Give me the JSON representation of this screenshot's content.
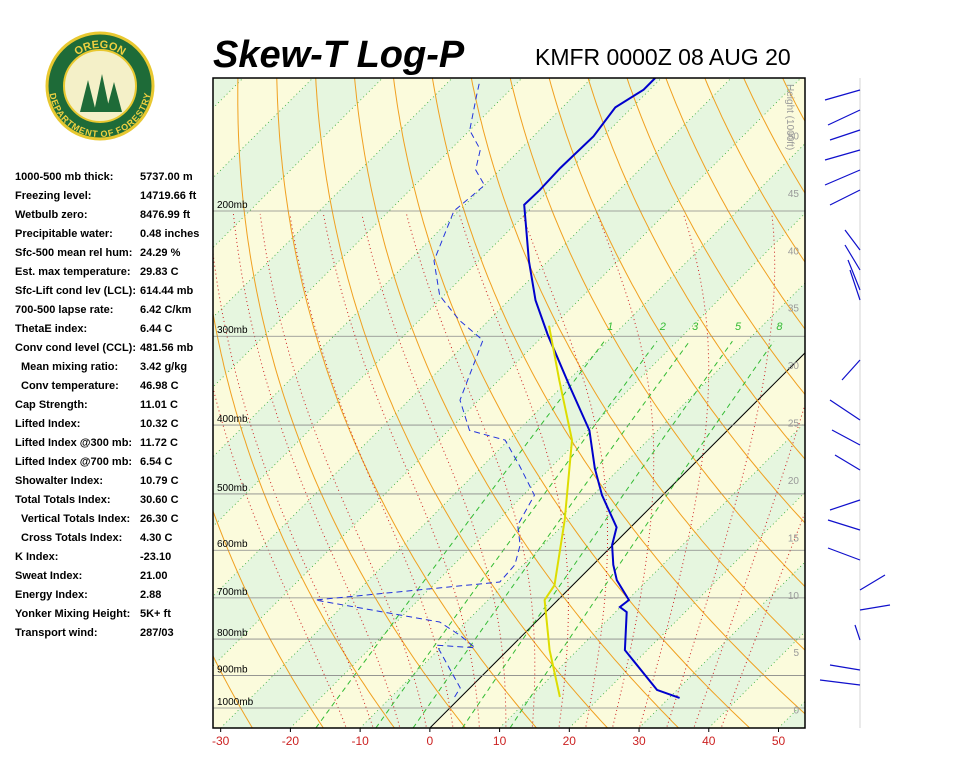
{
  "logo": {
    "top": "OREGON",
    "bottom": "DEPARTMENT OF FORESTRY"
  },
  "stats": {
    "rows": [
      {
        "label": "1000-500 mb thick:",
        "value": "5737.00 m"
      },
      {
        "label": "Freezing level:",
        "value": "14719.66 ft"
      },
      {
        "label": "Wetbulb zero:",
        "value": "8476.99 ft"
      },
      {
        "label": "Precipitable water:",
        "value": "0.48 inches"
      },
      {
        "label": "Sfc-500 mean rel hum:",
        "value": "24.29 %"
      },
      {
        "label": "Est. max temperature:",
        "value": "29.83 C"
      },
      {
        "label": "Sfc-Lift cond lev (LCL):",
        "value": "614.44 mb"
      },
      {
        "label": "700-500 lapse rate:",
        "value": "6.42 C/km"
      },
      {
        "label": "ThetaE index:",
        "value": "6.44 C"
      },
      {
        "label": "Conv cond level (CCL):",
        "value": "481.56 mb",
        "sub_rows": [
          {
            "label": "Mean mixing ratio:",
            "value": "3.42 g/kg"
          },
          {
            "label": "Conv temperature:",
            "value": "46.98 C"
          }
        ]
      },
      {
        "label": "Cap Strength:",
        "value": "11.01 C"
      },
      {
        "label": "Lifted Index:",
        "value": "10.32 C"
      },
      {
        "label": "Lifted Index @300 mb:",
        "value": "11.72 C"
      },
      {
        "label": "Lifted Index @700 mb:",
        "value": "6.54 C"
      },
      {
        "label": "Showalter Index:",
        "value": "10.79 C"
      },
      {
        "label": "Total Totals Index:",
        "value": "30.60 C",
        "sub_rows": [
          {
            "label": "Vertical Totals Index:",
            "value": "26.30 C"
          },
          {
            "label": "Cross Totals Index:",
            "value": "4.30 C"
          }
        ]
      },
      {
        "label": "K Index:",
        "value": "-23.10"
      },
      {
        "label": "Sweat Index:",
        "value": "21.00"
      },
      {
        "label": "Energy Index:",
        "value": "2.88"
      },
      {
        "label": "Yonker Mixing Height:",
        "value": "5K+ ft"
      },
      {
        "label": "Transport wind:",
        "value": "287/03"
      }
    ]
  },
  "chart_data": {
    "type": "skew-t",
    "title": "Skew-T Log-P",
    "subtitle": "KMFR 0000Z 08 AUG 20",
    "xlim": [
      -31.1,
      53.8
    ],
    "xticks": [
      -30,
      -20,
      -10,
      0,
      10,
      20,
      30,
      40,
      50
    ],
    "ylim": [
      1067,
      130
    ],
    "log_y": true,
    "skew_degrees": 45,
    "yticks": [
      {
        "value": 1000,
        "label": "1000mb"
      },
      {
        "value": 900,
        "label": "900mb"
      },
      {
        "value": 800,
        "label": "800mb"
      },
      {
        "value": 700,
        "label": "700mb"
      },
      {
        "value": 600,
        "label": "600mb"
      },
      {
        "value": 500,
        "label": "500mb"
      },
      {
        "value": 400,
        "label": "400mb"
      },
      {
        "value": 300,
        "label": "300mb"
      },
      {
        "value": 200,
        "label": "200mb"
      }
    ],
    "height_label": "Height (1000ft)",
    "hlim": [
      -1.6,
      55
    ],
    "height_ticks": [
      0,
      5,
      10,
      15,
      20,
      25,
      30,
      35,
      40,
      45,
      50
    ],
    "mixing_ratio_lines": [
      1,
      2,
      3,
      5,
      8
    ],
    "mixing_ratio_color": "#33bb33",
    "series": [
      {
        "color": "#0000cc",
        "pressure": [
          968,
          943,
          829,
          733,
          721,
          705,
          661,
          629,
          590,
          557,
          502,
          460,
          407,
          352,
          299,
          267,
          235,
          196,
          187,
          174,
          157,
          143,
          135,
          130
        ],
        "values": [
          31.5,
          27.1,
          16.8,
          11.6,
          9.9,
          10.2,
          5.6,
          2.9,
          -0.1,
          -2.0,
          -8.7,
          -13.6,
          -19.8,
          -29.1,
          -39.4,
          -46.2,
          -52.8,
          -61.5,
          -61.4,
          -61.6,
          -61.4,
          -62.4,
          -60.9,
          -60.9
        ]
      },
      {
        "color": "#2233dd",
        "dashed": true,
        "pressure": [
          965,
          937,
          816,
          823,
          790,
          757,
          705,
          665,
          629,
          590,
          553,
          502,
          456,
          420,
          407,
          369,
          304,
          285,
          263,
          235,
          200,
          184,
          175,
          164,
          154,
          138,
          131
        ],
        "values": [
          -0.9,
          -1.4,
          -10.9,
          -5.0,
          -9.0,
          -13.8,
          -34.8,
          -10.9,
          -11.2,
          -13.3,
          -16.5,
          -18.4,
          -24.8,
          -30.5,
          -37.0,
          -42.7,
          -48.0,
          -54.2,
          -60.6,
          -66.4,
          -70.7,
          -70.0,
          -73.5,
          -75.7,
          -80.0,
          -83.9,
          -85.7
        ]
      },
      {
        "color": "#dddd00",
        "pressure": [
          965,
          829,
          705,
          672,
          544,
          420,
          346,
          290
        ],
        "values": [
          14.2,
          6.0,
          -1.9,
          -2.6,
          -10.5,
          -20.9,
          -31.3,
          -40.6
        ]
      }
    ]
  }
}
